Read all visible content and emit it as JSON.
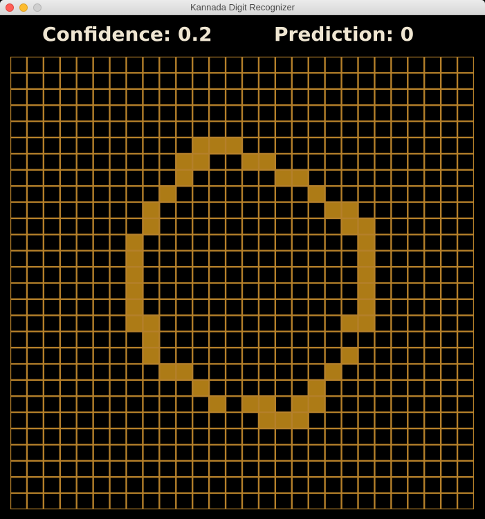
{
  "window": {
    "title": "Kannada Digit Recognizer"
  },
  "status": {
    "confidence_label": "Confidence:",
    "confidence_value": "0.2",
    "prediction_label": "Prediction:",
    "prediction_value": "0"
  },
  "colors": {
    "background": "#000000",
    "grid_line": "#b5802a",
    "filled_cell": "#ad7b16",
    "text": "#efe6d2"
  },
  "canvas": {
    "columns": 28,
    "rows": 28,
    "filled_cells": [
      [
        11,
        5
      ],
      [
        12,
        5
      ],
      [
        13,
        5
      ],
      [
        10,
        6
      ],
      [
        11,
        6
      ],
      [
        14,
        6
      ],
      [
        15,
        6
      ],
      [
        10,
        7
      ],
      [
        16,
        7
      ],
      [
        17,
        7
      ],
      [
        9,
        8
      ],
      [
        18,
        8
      ],
      [
        8,
        9
      ],
      [
        19,
        9
      ],
      [
        20,
        9
      ],
      [
        8,
        10
      ],
      [
        20,
        10
      ],
      [
        21,
        10
      ],
      [
        7,
        11
      ],
      [
        21,
        11
      ],
      [
        7,
        12
      ],
      [
        21,
        12
      ],
      [
        7,
        13
      ],
      [
        21,
        13
      ],
      [
        7,
        14
      ],
      [
        21,
        14
      ],
      [
        7,
        15
      ],
      [
        21,
        15
      ],
      [
        7,
        16
      ],
      [
        8,
        16
      ],
      [
        20,
        16
      ],
      [
        21,
        16
      ],
      [
        8,
        17
      ],
      [
        8,
        18
      ],
      [
        20,
        18
      ],
      [
        9,
        19
      ],
      [
        10,
        19
      ],
      [
        19,
        19
      ],
      [
        11,
        20
      ],
      [
        18,
        20
      ],
      [
        12,
        21
      ],
      [
        14,
        21
      ],
      [
        15,
        21
      ],
      [
        17,
        21
      ],
      [
        18,
        21
      ],
      [
        15,
        22
      ],
      [
        16,
        22
      ],
      [
        17,
        22
      ]
    ]
  }
}
